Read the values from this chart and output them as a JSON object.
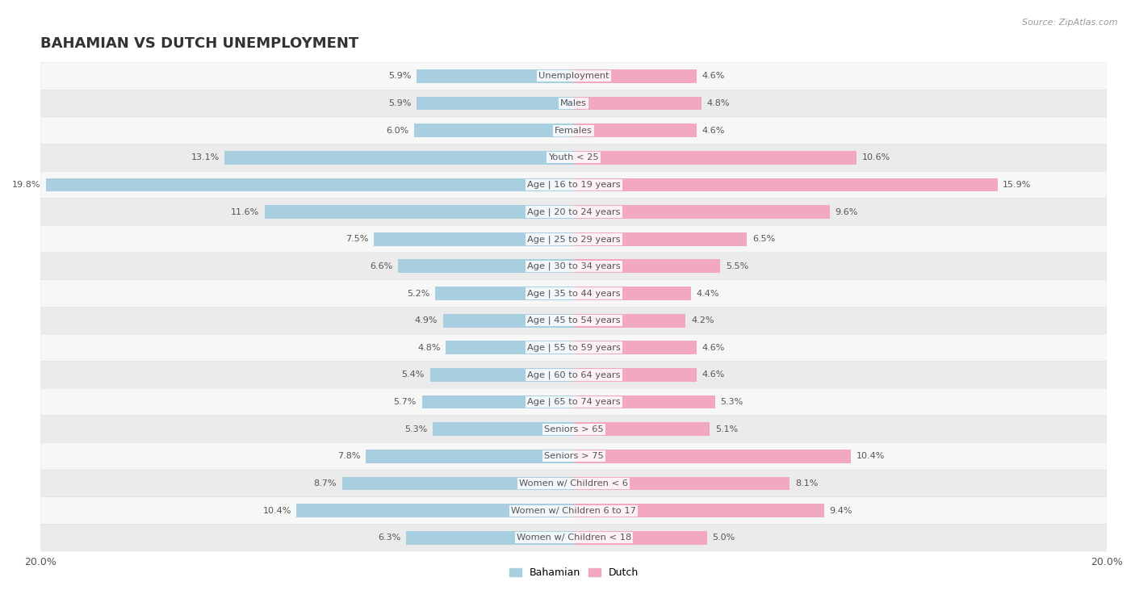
{
  "title": "BAHAMIAN VS DUTCH UNEMPLOYMENT",
  "source": "Source: ZipAtlas.com",
  "categories": [
    "Unemployment",
    "Males",
    "Females",
    "Youth < 25",
    "Age | 16 to 19 years",
    "Age | 20 to 24 years",
    "Age | 25 to 29 years",
    "Age | 30 to 34 years",
    "Age | 35 to 44 years",
    "Age | 45 to 54 years",
    "Age | 55 to 59 years",
    "Age | 60 to 64 years",
    "Age | 65 to 74 years",
    "Seniors > 65",
    "Seniors > 75",
    "Women w/ Children < 6",
    "Women w/ Children 6 to 17",
    "Women w/ Children < 18"
  ],
  "bahamian": [
    5.9,
    5.9,
    6.0,
    13.1,
    19.8,
    11.6,
    7.5,
    6.6,
    5.2,
    4.9,
    4.8,
    5.4,
    5.7,
    5.3,
    7.8,
    8.7,
    10.4,
    6.3
  ],
  "dutch": [
    4.6,
    4.8,
    4.6,
    10.6,
    15.9,
    9.6,
    6.5,
    5.5,
    4.4,
    4.2,
    4.6,
    4.6,
    5.3,
    5.1,
    10.4,
    8.1,
    9.4,
    5.0
  ],
  "bahamian_color": "#a8cfe0",
  "dutch_color": "#f2a8bf",
  "bahamian_highlight_color": "#5ba3c9",
  "dutch_highlight_color": "#e8607a",
  "xlim": 20.0,
  "bg_color": "#ffffff",
  "row_color_light": "#f7f7f7",
  "row_color_dark": "#ebebeb",
  "row_border_color": "#dddddd",
  "title_color": "#333333",
  "label_color": "#555555",
  "label_inside_color": "#ffffff",
  "source_color": "#999999"
}
